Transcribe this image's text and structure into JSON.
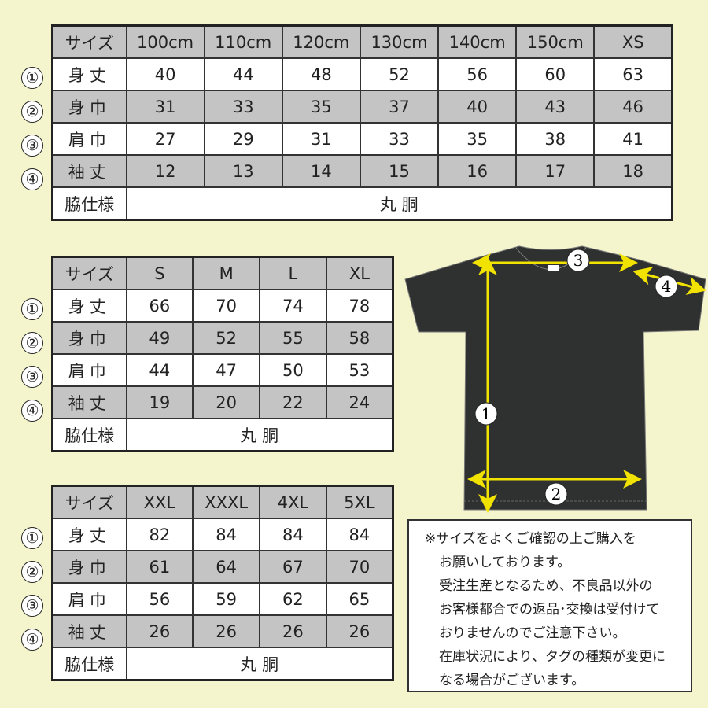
{
  "markers": [
    "①",
    "②",
    "③",
    "④"
  ],
  "tables": [
    {
      "header": [
        "サイズ",
        "100cm",
        "110cm",
        "120cm",
        "130cm",
        "140cm",
        "150cm",
        "XS"
      ],
      "rows": [
        {
          "label": "身丈",
          "values": [
            "40",
            "44",
            "48",
            "52",
            "56",
            "60",
            "63"
          ]
        },
        {
          "label": "身巾",
          "values": [
            "31",
            "33",
            "35",
            "37",
            "40",
            "43",
            "46"
          ]
        },
        {
          "label": "肩巾",
          "values": [
            "27",
            "29",
            "31",
            "33",
            "35",
            "38",
            "41"
          ]
        },
        {
          "label": "袖丈",
          "values": [
            "12",
            "13",
            "14",
            "15",
            "16",
            "17",
            "18"
          ]
        }
      ],
      "side_label": "脇仕様",
      "side_value": "丸 胴"
    },
    {
      "header": [
        "サイズ",
        "S",
        "M",
        "L",
        "XL"
      ],
      "rows": [
        {
          "label": "身丈",
          "values": [
            "66",
            "70",
            "74",
            "78"
          ]
        },
        {
          "label": "身巾",
          "values": [
            "49",
            "52",
            "55",
            "58"
          ]
        },
        {
          "label": "肩巾",
          "values": [
            "44",
            "47",
            "50",
            "53"
          ]
        },
        {
          "label": "袖丈",
          "values": [
            "19",
            "20",
            "22",
            "24"
          ]
        }
      ],
      "side_label": "脇仕様",
      "side_value": "丸 胴"
    },
    {
      "header": [
        "サイズ",
        "XXL",
        "XXXL",
        "4XL",
        "5XL"
      ],
      "rows": [
        {
          "label": "身丈",
          "values": [
            "82",
            "84",
            "84",
            "84"
          ]
        },
        {
          "label": "身巾",
          "values": [
            "61",
            "64",
            "67",
            "70"
          ]
        },
        {
          "label": "肩巾",
          "values": [
            "56",
            "59",
            "62",
            "65"
          ]
        },
        {
          "label": "袖丈",
          "values": [
            "26",
            "26",
            "26",
            "26"
          ]
        }
      ],
      "side_label": "脇仕様",
      "side_value": "丸 胴"
    }
  ],
  "diagram": {
    "labels": [
      "1",
      "2",
      "3",
      "4"
    ],
    "shirt_color": "#2f3130",
    "arrow_color": "#f2e200"
  },
  "note": {
    "lines": [
      "※サイズをよくご確認の上ご購入を",
      "お願いしております。",
      "受注生産となるため、不良品以外の",
      "お客様都合での返品･交換は受付けて",
      "おりませんのでご注意下さい。",
      "在庫状況により、タグの種類が変更に",
      "なる場合がございます。"
    ]
  }
}
